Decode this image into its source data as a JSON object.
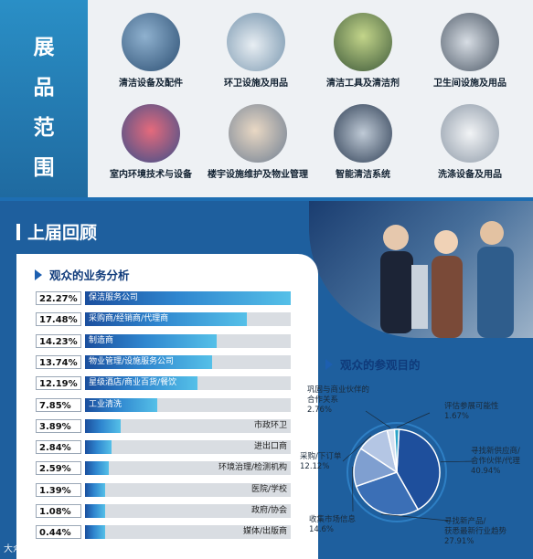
{
  "exhibit_range": {
    "title": "展品范围",
    "title_chars": [
      "展",
      "品",
      "范",
      "围"
    ],
    "categories": [
      "清洁设备及配件",
      "环卫设施及用品",
      "清洁工具及清洁剂",
      "卫生间设施及用品",
      "室内环境技术与设备",
      "楼宇设施维护及物业管理",
      "智能清洁系统",
      "洗涤设备及用品"
    ]
  },
  "review": {
    "title": "上届回顾"
  },
  "business": {
    "title": "观众的业务分析",
    "chart_data": {
      "type": "bar",
      "title": "观众的业务分析",
      "categories": [
        "保洁服务公司",
        "采购商/经销商/代理商",
        "制造商",
        "物业管理/设施服务公司",
        "星级酒店/商业百货/餐饮",
        "工业清洗",
        "市政环卫",
        "进出口商",
        "环境治理/检测机构",
        "医院/学校",
        "政府/协会",
        "媒体/出版商"
      ],
      "values": [
        22.27,
        17.48,
        14.23,
        13.74,
        12.19,
        7.85,
        3.89,
        2.84,
        2.59,
        1.39,
        1.08,
        0.44
      ],
      "value_labels": [
        "22.27%",
        "17.48%",
        "14.23%",
        "13.74%",
        "12.19%",
        "7.85%",
        "3.89%",
        "2.84%",
        "2.59%",
        "1.39%",
        "1.08%",
        "0.44%"
      ],
      "xlim": [
        0,
        22.27
      ]
    }
  },
  "purpose": {
    "title": "观众的参观目的",
    "chart_data": {
      "type": "pie",
      "title": "观众的参观目的",
      "categories": [
        "寻找新供应商/合作伙伴/代理",
        "寻找新产品/获悉最新行业趋势",
        "收集市场信息",
        "采购/下订单",
        "巩固与商业伙伴的合作关系",
        "评估参展可能性"
      ],
      "values": [
        40.94,
        27.91,
        14.6,
        12.12,
        2.76,
        1.67
      ],
      "value_labels": [
        "40.94%",
        "27.91%",
        "14.6%",
        "12.12%",
        "2.76%",
        "1.67%"
      ],
      "label_lines": [
        [
          "寻找新供应商/",
          "合作伙伴/代理"
        ],
        [
          "寻找新产品/",
          "获悉最新行业趋势"
        ],
        [
          "收集市场信息"
        ],
        [
          "采购/下订单"
        ],
        [
          "巩固与商业伙伴的",
          "合作关系"
        ],
        [
          "评估参展可能性"
        ]
      ],
      "colors": [
        "#1e4f9c",
        "#3b6fb6",
        "#7f9fd0",
        "#b4c6e4",
        "#d6e0f0",
        "#2aa3c8"
      ]
    }
  },
  "watermark": "大众点评"
}
